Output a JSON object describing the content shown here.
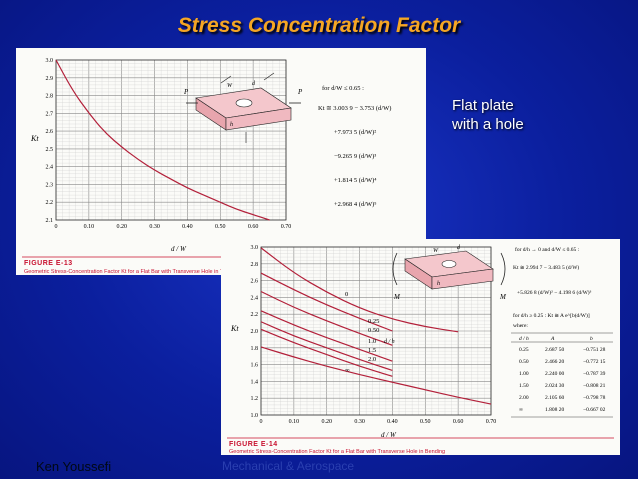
{
  "slide": {
    "title": "Stress Concentration Factor",
    "note_line1": "Flat plate",
    "note_line2": "with a hole",
    "footer_left": "Ken Youssefi",
    "footer_center": "Mechanical & Aerospace"
  },
  "colors": {
    "background": "#0b1f9e",
    "title": "#f5a623",
    "curve": "#b3203a",
    "fig_bg": "#fbfbf8"
  },
  "figure13": {
    "label": "FIGURE E-13",
    "caption": "Geometric Stress-Concentration Factor Kt for a Flat Bar with Transverse Hole in Tension",
    "ylabel": "Kt",
    "xlabel": "d / W",
    "yticks": [
      "2.1",
      "2.2",
      "2.3",
      "2.4",
      "2.5",
      "2.6",
      "2.7",
      "2.8",
      "2.9",
      "3.0"
    ],
    "xticks": [
      "0",
      "0.10",
      "0.20",
      "0.30",
      "0.40",
      "0.50",
      "0.60",
      "0.70"
    ],
    "formula_for": "for d/W ≤ 0.65 :",
    "formula_lines": [
      "Kt ≅ 3.003 9 − 3.753 (d/W)",
      "+7.973 5 (d/W)²",
      "−9.265 9 (d/W)³",
      "+1.814 5 (d/W)⁴",
      "+2.968 4 (d/W)⁵"
    ],
    "diagram_labels": [
      "P",
      "P",
      "W",
      "d",
      "h"
    ]
  },
  "figure14": {
    "label": "FIGURE E-14",
    "caption": "Geometric Stress-Concentration Factor Kt for a Flat Bar with Transverse Hole in Bending",
    "ylabel": "Kt",
    "xlabel": "d / W",
    "yticks": [
      "1.0",
      "1.2",
      "1.4",
      "1.6",
      "1.8",
      "2.0",
      "2.2",
      "2.4",
      "2.6",
      "2.8",
      "3.0"
    ],
    "xticks": [
      "0",
      "0.10",
      "0.20",
      "0.30",
      "0.40",
      "0.50",
      "0.60",
      "0.70"
    ],
    "curve_labels": [
      "0",
      "0.25",
      "0.50",
      "1.0",
      "1.5",
      "2.0",
      "∞"
    ],
    "dh_label": "d / h",
    "formula_lines": [
      "for d/h → 0 and d/W ≤ 0.65 :",
      "Kt ≅ 2.994 7 − 3.483 5 (d/W)",
      "+5.826 8 (d/W)² − 4.198 6 (d/W)³",
      "for d/h ≥ 0.25 : Kt ≅ A e^[b(d/W)]",
      "where:"
    ],
    "table_headers": [
      "d / h",
      "A",
      "b"
    ],
    "table_rows": [
      [
        "0.25",
        "2.687 50",
        "−0.751 28"
      ],
      [
        "0.50",
        "2.466 20",
        "−0.772 15"
      ],
      [
        "1.00",
        "2.240 00",
        "−0.787 39"
      ],
      [
        "1.50",
        "2.024 30",
        "−0.808 21"
      ],
      [
        "2.00",
        "2.105 60",
        "−0.798 78"
      ],
      [
        "∞",
        "1.808 20",
        "−0.667 02"
      ]
    ],
    "diagram_labels": [
      "M",
      "M",
      "W",
      "d",
      "h"
    ]
  },
  "chart_data": [
    {
      "type": "line",
      "title": "FIGURE E-13",
      "xlabel": "d / W",
      "ylabel": "Kt",
      "xlim": [
        0,
        0.7
      ],
      "ylim": [
        2.1,
        3.0
      ],
      "grid": true,
      "series": [
        {
          "x": [
            0,
            0.05,
            0.1,
            0.15,
            0.2,
            0.25,
            0.3,
            0.35,
            0.4,
            0.45,
            0.5,
            0.55,
            0.6,
            0.65
          ],
          "values": [
            3.0,
            2.83,
            2.7,
            2.59,
            2.51,
            2.44,
            2.38,
            2.33,
            2.28,
            2.24,
            2.2,
            2.16,
            2.13,
            2.1
          ]
        }
      ]
    },
    {
      "type": "line",
      "title": "FIGURE E-14",
      "xlabel": "d / W",
      "ylabel": "Kt",
      "xlim": [
        0,
        0.7
      ],
      "ylim": [
        1.0,
        3.0
      ],
      "grid": true,
      "series": [
        {
          "name": "0",
          "x": [
            0,
            0.1,
            0.2,
            0.3,
            0.4,
            0.5,
            0.6
          ],
          "values": [
            2.99,
            2.69,
            2.46,
            2.27,
            2.14,
            2.05,
            1.99
          ]
        },
        {
          "name": "0.25",
          "x": [
            0,
            0.1,
            0.2,
            0.3,
            0.4
          ],
          "values": [
            2.69,
            2.49,
            2.31,
            2.15,
            2.0
          ]
        },
        {
          "name": "0.50",
          "x": [
            0,
            0.1,
            0.2,
            0.3,
            0.4
          ],
          "values": [
            2.47,
            2.28,
            2.12,
            1.97,
            1.83
          ]
        },
        {
          "name": "1.0",
          "x": [
            0,
            0.1,
            0.2,
            0.3,
            0.4
          ],
          "values": [
            2.24,
            2.07,
            1.92,
            1.78,
            1.64
          ]
        },
        {
          "name": "1.5",
          "x": [
            0,
            0.1,
            0.2,
            0.3,
            0.4
          ],
          "values": [
            2.02,
            1.86,
            1.72,
            1.58,
            1.46
          ]
        },
        {
          "name": "2.0",
          "x": [
            0,
            0.1,
            0.2,
            0.3,
            0.4
          ],
          "values": [
            2.11,
            1.94,
            1.8,
            1.66,
            1.53
          ]
        },
        {
          "name": "∞",
          "x": [
            0,
            0.1,
            0.2,
            0.3,
            0.4,
            0.5,
            0.6,
            0.7
          ],
          "values": [
            1.81,
            1.69,
            1.58,
            1.48,
            1.39,
            1.3,
            1.21,
            1.13
          ]
        }
      ]
    }
  ]
}
